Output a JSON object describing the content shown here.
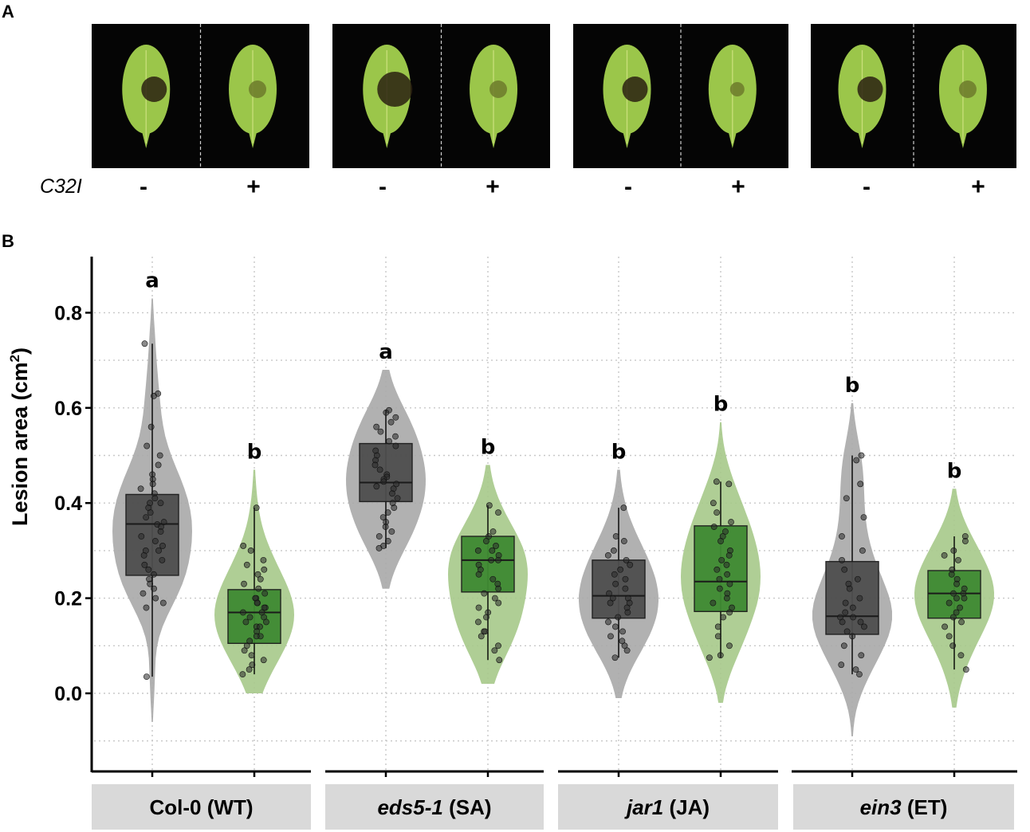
{
  "panel_a": {
    "letter": "A",
    "treatment_label": "C32I",
    "signs": [
      "-",
      "+",
      "-",
      "+",
      "-",
      "+",
      "-",
      "+"
    ],
    "photos": [
      {
        "genotype": "Col-0 (WT)"
      },
      {
        "genotype": "eds5-1 (SA)"
      },
      {
        "genotype": "jar1 (JA)"
      },
      {
        "genotype": "ein3 (ET)"
      }
    ]
  },
  "panel_b": {
    "letter": "B"
  },
  "colors": {
    "minus_violin": "#a9a9a9",
    "minus_box": "#4e4e4e",
    "plus_violin": "#a6c98a",
    "plus_box": "#3f8a33",
    "strip_bg": "#d9d9d9",
    "grid": "#c8c8c8",
    "leaf": "#9bc64a",
    "lesion": "#2a2010"
  },
  "chart_data": {
    "type": "violin",
    "title": "",
    "ylabel": "Lesion area (cm",
    "ylabel_sup": "2",
    "ylabel_close": ")",
    "ylim": [
      -0.17,
      0.92
    ],
    "yticks": [
      0.0,
      0.2,
      0.4,
      0.6,
      0.8
    ],
    "ytick_labels": [
      "0.0",
      "0.2",
      "0.4",
      "0.6",
      "0.8"
    ],
    "grid": true,
    "facet_labels": [
      {
        "italic": "",
        "plain": "Col-0 (WT)"
      },
      {
        "italic": "eds5-1",
        "plain": " (SA)"
      },
      {
        "italic": "jar1",
        "plain": " (JA)"
      },
      {
        "italic": "ein3",
        "plain": " (ET)"
      }
    ],
    "groups": [
      {
        "facet": 0,
        "treatment": "-",
        "letter": "a",
        "q1": 0.248,
        "median": 0.356,
        "q3": 0.418,
        "whisker_low": 0.035,
        "whisker_high": 0.735,
        "violin_min": -0.06,
        "violin_max": 0.83,
        "points": [
          0.735,
          0.63,
          0.625,
          0.56,
          0.52,
          0.5,
          0.48,
          0.46,
          0.45,
          0.44,
          0.43,
          0.42,
          0.41,
          0.4,
          0.4,
          0.39,
          0.38,
          0.37,
          0.36,
          0.355,
          0.35,
          0.34,
          0.33,
          0.32,
          0.31,
          0.3,
          0.3,
          0.29,
          0.28,
          0.27,
          0.26,
          0.25,
          0.24,
          0.23,
          0.22,
          0.21,
          0.2,
          0.19,
          0.18,
          0.035
        ]
      },
      {
        "facet": 0,
        "treatment": "+",
        "letter": "b",
        "q1": 0.105,
        "median": 0.17,
        "q3": 0.218,
        "whisker_low": 0.04,
        "whisker_high": 0.39,
        "violin_min": 0.0,
        "violin_max": 0.47,
        "points": [
          0.39,
          0.31,
          0.3,
          0.28,
          0.27,
          0.26,
          0.25,
          0.24,
          0.23,
          0.22,
          0.21,
          0.2,
          0.2,
          0.19,
          0.19,
          0.18,
          0.18,
          0.17,
          0.17,
          0.16,
          0.16,
          0.15,
          0.15,
          0.14,
          0.14,
          0.13,
          0.12,
          0.12,
          0.11,
          0.1,
          0.09,
          0.08,
          0.07,
          0.06,
          0.05,
          0.04
        ]
      },
      {
        "facet": 1,
        "treatment": "-",
        "letter": "a",
        "q1": 0.403,
        "median": 0.443,
        "q3": 0.525,
        "whisker_low": 0.305,
        "whisker_high": 0.595,
        "violin_min": 0.22,
        "violin_max": 0.68,
        "points": [
          0.595,
          0.59,
          0.58,
          0.57,
          0.56,
          0.55,
          0.54,
          0.53,
          0.52,
          0.51,
          0.5,
          0.49,
          0.48,
          0.47,
          0.46,
          0.455,
          0.45,
          0.445,
          0.44,
          0.435,
          0.43,
          0.42,
          0.41,
          0.4,
          0.39,
          0.38,
          0.37,
          0.36,
          0.35,
          0.34,
          0.33,
          0.32,
          0.31,
          0.305
        ]
      },
      {
        "facet": 1,
        "treatment": "+",
        "letter": "b",
        "q1": 0.213,
        "median": 0.28,
        "q3": 0.33,
        "whisker_low": 0.07,
        "whisker_high": 0.395,
        "violin_min": 0.02,
        "violin_max": 0.48,
        "points": [
          0.395,
          0.38,
          0.34,
          0.33,
          0.32,
          0.31,
          0.3,
          0.3,
          0.29,
          0.28,
          0.28,
          0.27,
          0.26,
          0.25,
          0.24,
          0.23,
          0.22,
          0.21,
          0.2,
          0.19,
          0.18,
          0.17,
          0.16,
          0.15,
          0.13,
          0.13,
          0.12,
          0.1,
          0.09,
          0.07
        ]
      },
      {
        "facet": 2,
        "treatment": "-",
        "letter": "b",
        "q1": 0.158,
        "median": 0.205,
        "q3": 0.28,
        "whisker_low": 0.075,
        "whisker_high": 0.39,
        "violin_min": -0.01,
        "violin_max": 0.47,
        "points": [
          0.39,
          0.33,
          0.32,
          0.3,
          0.29,
          0.28,
          0.27,
          0.26,
          0.25,
          0.24,
          0.23,
          0.22,
          0.21,
          0.2,
          0.2,
          0.19,
          0.19,
          0.18,
          0.17,
          0.16,
          0.15,
          0.14,
          0.13,
          0.12,
          0.11,
          0.1,
          0.09,
          0.075
        ]
      },
      {
        "facet": 2,
        "treatment": "+",
        "letter": "b",
        "q1": 0.172,
        "median": 0.235,
        "q3": 0.352,
        "whisker_low": 0.075,
        "whisker_high": 0.445,
        "violin_min": -0.02,
        "violin_max": 0.57,
        "points": [
          0.445,
          0.44,
          0.4,
          0.38,
          0.36,
          0.35,
          0.34,
          0.33,
          0.32,
          0.3,
          0.29,
          0.28,
          0.27,
          0.26,
          0.25,
          0.24,
          0.23,
          0.22,
          0.21,
          0.2,
          0.19,
          0.18,
          0.17,
          0.16,
          0.14,
          0.12,
          0.1,
          0.08,
          0.075
        ]
      },
      {
        "facet": 3,
        "treatment": "-",
        "letter": "b",
        "q1": 0.124,
        "median": 0.162,
        "q3": 0.277,
        "whisker_low": 0.04,
        "whisker_high": 0.5,
        "violin_min": -0.09,
        "violin_max": 0.61,
        "points": [
          0.5,
          0.49,
          0.44,
          0.41,
          0.37,
          0.33,
          0.3,
          0.28,
          0.26,
          0.24,
          0.23,
          0.22,
          0.2,
          0.19,
          0.18,
          0.17,
          0.16,
          0.16,
          0.15,
          0.15,
          0.14,
          0.13,
          0.12,
          0.1,
          0.08,
          0.06,
          0.05,
          0.04
        ]
      },
      {
        "facet": 3,
        "treatment": "+",
        "letter": "b",
        "q1": 0.158,
        "median": 0.21,
        "q3": 0.258,
        "whisker_low": 0.05,
        "whisker_high": 0.33,
        "violin_min": -0.03,
        "violin_max": 0.43,
        "points": [
          0.33,
          0.32,
          0.3,
          0.29,
          0.28,
          0.26,
          0.25,
          0.24,
          0.23,
          0.22,
          0.21,
          0.21,
          0.2,
          0.2,
          0.19,
          0.18,
          0.17,
          0.16,
          0.15,
          0.14,
          0.12,
          0.1,
          0.08,
          0.05
        ]
      }
    ]
  }
}
